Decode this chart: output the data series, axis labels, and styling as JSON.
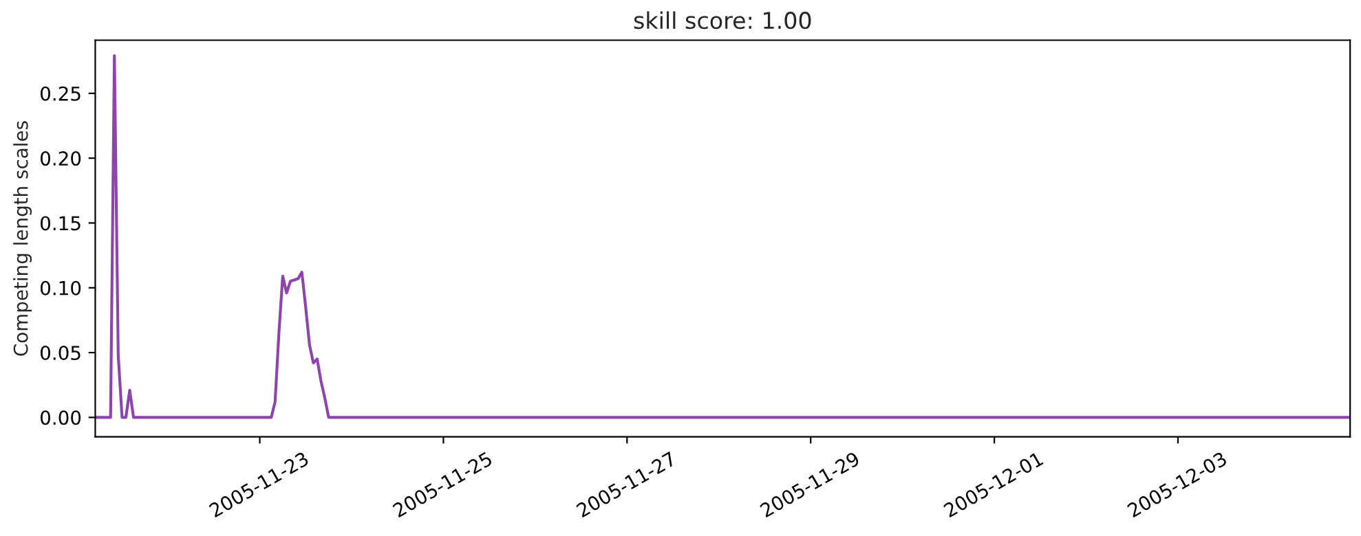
{
  "chart_data": {
    "type": "line",
    "title": "skill score: 1.00",
    "ylabel": "Competing length scales",
    "x": [
      "2005-11-21T05:00",
      "2005-11-21T09:00",
      "2005-11-21T10:00",
      "2005-11-21T11:00",
      "2005-11-21T12:00",
      "2005-11-21T13:00",
      "2005-11-21T14:00",
      "2005-11-21T15:00",
      "2005-11-23T03:00",
      "2005-11-23T04:00",
      "2005-11-23T05:00",
      "2005-11-23T06:00",
      "2005-11-23T07:00",
      "2005-11-23T08:00",
      "2005-11-23T09:00",
      "2005-11-23T10:00",
      "2005-11-23T11:00",
      "2005-11-23T12:00",
      "2005-11-23T13:00",
      "2005-11-23T14:00",
      "2005-11-23T15:00",
      "2005-11-23T16:00",
      "2005-11-23T17:00",
      "2005-11-23T18:00",
      "2005-12-04T21:00"
    ],
    "series": [
      {
        "color": "#8e44ad",
        "values": [
          0,
          0,
          0.279,
          0.048,
          0,
          0,
          0.021,
          0,
          0,
          0.012,
          0.065,
          0.109,
          0.096,
          0.105,
          0.106,
          0.107,
          0.112,
          0.085,
          0.056,
          0.042,
          0.045,
          0.028,
          0.015,
          0,
          0
        ]
      }
    ],
    "xlim": [
      "2005-11-21T05:00",
      "2005-12-04T21:00"
    ],
    "xticks": [
      "2005-11-23",
      "2005-11-25",
      "2005-11-27",
      "2005-11-29",
      "2005-12-01",
      "2005-12-03"
    ],
    "ylim": [
      -0.015,
      0.291
    ],
    "yticks": [
      {
        "value": 0,
        "label": "0.00"
      },
      {
        "value": 0.05,
        "label": "0.05"
      },
      {
        "value": 0.1,
        "label": "0.10"
      },
      {
        "value": 0.15,
        "label": "0.15"
      },
      {
        "value": 0.2,
        "label": "0.20"
      },
      {
        "value": 0.25,
        "label": "0.25"
      }
    ],
    "grid": false,
    "legend": false
  }
}
